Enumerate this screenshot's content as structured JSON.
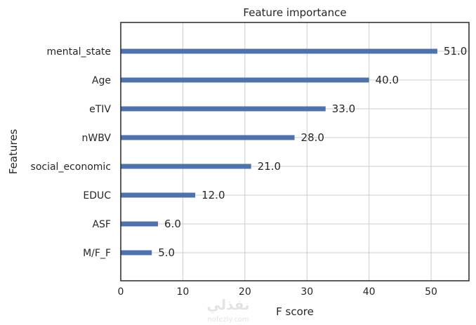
{
  "chart_data": {
    "type": "bar",
    "orientation": "horizontal",
    "title": "Feature importance",
    "xlabel": "F score",
    "ylabel": "Features",
    "categories": [
      "mental_state",
      "Age",
      "eTIV",
      "nWBV",
      "social_economic",
      "EDUC",
      "ASF",
      "M/F_F"
    ],
    "values": [
      51.0,
      40.0,
      33.0,
      28.0,
      21.0,
      12.0,
      6.0,
      5.0
    ],
    "value_labels": [
      "51.0",
      "40.0",
      "33.0",
      "28.0",
      "21.0",
      "12.0",
      "6.0",
      "5.0"
    ],
    "xticks": [
      0,
      10,
      20,
      30,
      40,
      50
    ],
    "xlim": [
      0,
      56.1
    ],
    "grid": true,
    "bar_color": "#4c72b0"
  },
  "watermark": {
    "text": "نفذلي",
    "subtext": "nofezly.com"
  }
}
